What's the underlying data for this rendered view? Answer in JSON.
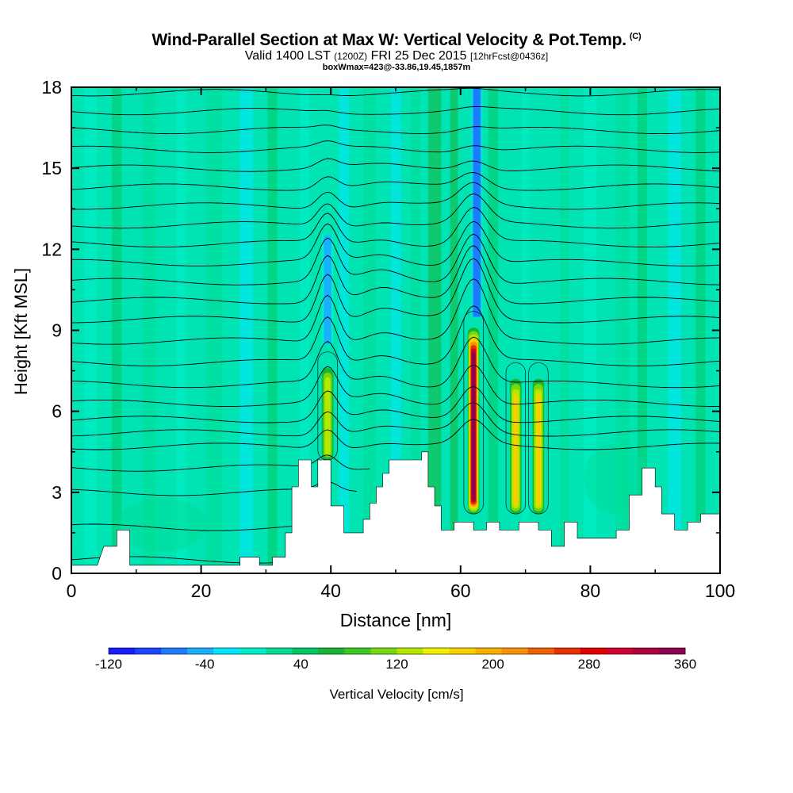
{
  "title": {
    "main": "Wind-Parallel Section at Max W: Vertical Velocity & Pot.Temp.",
    "copyright": "(C)",
    "line2_a": "Valid 1400 LST",
    "line2_b": "(1200Z)",
    "line2_c": "FRI 25 Dec 2015",
    "line2_d": "[12hrFcst@0436z]",
    "line3": "boxWmax=423@-33.86,19.45,1857m"
  },
  "chart_data": {
    "type": "heatmap",
    "xlabel": "Distance [nm]",
    "ylabel": "Height [Kft MSL]",
    "xlim": [
      0,
      100
    ],
    "ylim": [
      0,
      18
    ],
    "xticks": [
      "0",
      "20",
      "40",
      "60",
      "80",
      "100"
    ],
    "yticks": [
      "0",
      "3",
      "6",
      "9",
      "12",
      "15",
      "18"
    ],
    "colorbar": {
      "label": "Vertical Velocity [cm/s]",
      "range": [
        -120,
        360
      ],
      "tick_labels": [
        "-120",
        "-40",
        "40",
        "120",
        "200",
        "280",
        "360"
      ],
      "colors": [
        "#1a1aff",
        "#1a44ff",
        "#1a7cff",
        "#18b0ff",
        "#00e8ff",
        "#00eec8",
        "#00dc96",
        "#00c864",
        "#18b434",
        "#3cc820",
        "#78d810",
        "#b4e800",
        "#f0f000",
        "#f8d000",
        "#f8b000",
        "#f89000",
        "#f06000",
        "#e83000",
        "#e00000",
        "#d00030",
        "#b00040",
        "#900050"
      ]
    },
    "max_updraft": {
      "x": 62,
      "height_kft": 7.4,
      "value_cms": 423
    },
    "updraft_cores": [
      {
        "x": 62,
        "bottom": 2.2,
        "top": 9.1,
        "peak_cms": 360
      },
      {
        "x": 68.5,
        "bottom": 2.2,
        "top": 7.2,
        "peak_cms": 200
      },
      {
        "x": 72,
        "bottom": 2.2,
        "top": 7.2,
        "peak_cms": 200
      },
      {
        "x": 39.5,
        "bottom": 4.2,
        "top": 7.6,
        "peak_cms": 150
      }
    ],
    "downdraft_bands": [
      {
        "x": 62.5,
        "bottom": 9.5,
        "top": 18,
        "min_cms": -80
      },
      {
        "x": 39.5,
        "bottom": 8.5,
        "top": 12.5,
        "min_cms": -50
      }
    ],
    "terrain": [
      [
        0,
        0.3
      ],
      [
        4,
        0.3
      ],
      [
        5,
        1
      ],
      [
        7,
        1
      ],
      [
        7,
        1.6
      ],
      [
        9,
        1.6
      ],
      [
        9,
        0.3
      ],
      [
        26,
        0.3
      ],
      [
        26,
        0.6
      ],
      [
        29,
        0.6
      ],
      [
        29,
        0.3
      ],
      [
        31,
        0.3
      ],
      [
        31,
        0.6
      ],
      [
        33,
        0.6
      ],
      [
        33,
        1.5
      ],
      [
        34,
        1.5
      ],
      [
        34,
        3.2
      ],
      [
        35,
        3.2
      ],
      [
        35,
        4.2
      ],
      [
        37,
        4.2
      ],
      [
        37,
        3.2
      ],
      [
        38,
        3.2
      ],
      [
        38,
        4.2
      ],
      [
        40,
        4.2
      ],
      [
        40,
        2.5
      ],
      [
        42,
        2.5
      ],
      [
        42,
        1.5
      ],
      [
        45,
        1.5
      ],
      [
        45,
        2.0
      ],
      [
        46,
        2.0
      ],
      [
        46,
        2.6
      ],
      [
        47,
        2.6
      ],
      [
        47,
        3.2
      ],
      [
        48,
        3.2
      ],
      [
        48,
        3.7
      ],
      [
        49,
        3.7
      ],
      [
        49,
        4.2
      ],
      [
        54,
        4.2
      ],
      [
        54,
        4.5
      ],
      [
        55,
        4.5
      ],
      [
        55,
        3.2
      ],
      [
        56,
        3.2
      ],
      [
        56,
        2.5
      ],
      [
        57,
        2.5
      ],
      [
        57,
        1.6
      ],
      [
        59,
        1.6
      ],
      [
        59,
        1.9
      ],
      [
        62,
        1.9
      ],
      [
        62,
        1.6
      ],
      [
        64,
        1.6
      ],
      [
        64,
        1.9
      ],
      [
        66,
        1.9
      ],
      [
        66,
        1.6
      ],
      [
        69,
        1.6
      ],
      [
        69,
        1.9
      ],
      [
        72,
        1.9
      ],
      [
        72,
        1.6
      ],
      [
        74,
        1.6
      ],
      [
        74,
        1.0
      ],
      [
        76,
        1.0
      ],
      [
        76,
        1.9
      ],
      [
        78,
        1.9
      ],
      [
        78,
        1.3
      ],
      [
        84,
        1.3
      ],
      [
        84,
        1.6
      ],
      [
        86,
        1.6
      ],
      [
        86,
        2.9
      ],
      [
        88,
        2.9
      ],
      [
        88,
        3.9
      ],
      [
        90,
        3.9
      ],
      [
        90,
        3.2
      ],
      [
        91,
        3.2
      ],
      [
        91,
        2.2
      ],
      [
        93,
        2.2
      ],
      [
        93,
        1.6
      ],
      [
        95,
        1.6
      ],
      [
        95,
        1.9
      ],
      [
        97,
        1.9
      ],
      [
        97,
        2.2
      ],
      [
        100,
        2.2
      ]
    ],
    "isentropes": [
      {
        "base": 0.5,
        "min_x": 0,
        "max_x": 38
      },
      {
        "base": 1.7,
        "min_x": 0,
        "max_x": 38
      },
      {
        "base": 3.0,
        "min_x": 0,
        "max_x": 44
      },
      {
        "base": 3.9,
        "min_x": 0,
        "max_x": 46
      },
      {
        "base": 4.7,
        "min_x": 0,
        "max_x": 100
      },
      {
        "base": 5.2,
        "min_x": 0,
        "max_x": 100
      },
      {
        "base": 5.7,
        "min_x": 0,
        "max_x": 100
      },
      {
        "base": 6.3,
        "min_x": 0,
        "max_x": 100
      },
      {
        "base": 7.0,
        "min_x": 0,
        "max_x": 100
      },
      {
        "base": 7.8,
        "min_x": 0,
        "max_x": 100
      },
      {
        "base": 8.6,
        "min_x": 0,
        "max_x": 100
      },
      {
        "base": 9.4,
        "min_x": 0,
        "max_x": 100
      },
      {
        "base": 10.1,
        "min_x": 0,
        "max_x": 100
      },
      {
        "base": 10.8,
        "min_x": 0,
        "max_x": 100
      },
      {
        "base": 11.5,
        "min_x": 0,
        "max_x": 100
      },
      {
        "base": 12.2,
        "min_x": 0,
        "max_x": 100
      },
      {
        "base": 12.9,
        "min_x": 0,
        "max_x": 100
      },
      {
        "base": 13.6,
        "min_x": 0,
        "max_x": 100
      },
      {
        "base": 14.3,
        "min_x": 0,
        "max_x": 100
      },
      {
        "base": 15.0,
        "min_x": 0,
        "max_x": 100
      },
      {
        "base": 15.7,
        "min_x": 0,
        "max_x": 100
      },
      {
        "base": 16.4,
        "min_x": 0,
        "max_x": 100
      },
      {
        "base": 17.1,
        "min_x": 0,
        "max_x": 100
      },
      {
        "base": 17.8,
        "min_x": 0,
        "max_x": 100
      }
    ]
  }
}
